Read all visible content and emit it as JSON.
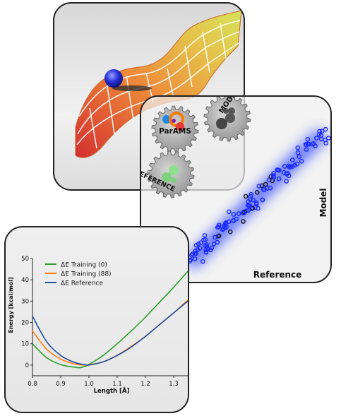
{
  "pes_card": {
    "content": "potential energy surface with a sphere on it"
  },
  "parity_card": {
    "logo": "ParAMS",
    "gear_model_label": "MODEL",
    "gear_reference_label": "REFERENCE",
    "x_axis_label": "Reference",
    "y_axis_label": "Model",
    "colors": {
      "points": "#1a2aff",
      "glow": "#3c52ff",
      "black_points": "#111111"
    }
  },
  "chart_data": {
    "type": "line",
    "xlabel": "Length [Å]",
    "ylabel": "Energy [kcal/mol]",
    "xlim": [
      0.8,
      1.35
    ],
    "ylim": [
      -5,
      50
    ],
    "xticks": [
      "0.8",
      "0.9",
      "1.0",
      "1.1",
      "1.2",
      "1.3"
    ],
    "yticks": [
      "0",
      "10",
      "20",
      "30",
      "40",
      "50"
    ],
    "legend_placement": "top-left",
    "series": [
      {
        "name": "ΔE Training (0)",
        "color": "#2ca02c",
        "x": [
          0.8,
          0.85,
          0.9,
          0.95,
          0.97,
          1.0,
          1.05,
          1.1,
          1.15,
          1.2,
          1.25,
          1.3,
          1.35
        ],
        "y": [
          10.0,
          3.5,
          0.2,
          -1.0,
          -1.2,
          0.3,
          4.5,
          10.0,
          16.0,
          22.5,
          29.5,
          36.5,
          44.0
        ]
      },
      {
        "name": "ΔE Training (88)",
        "color": "#ff7f0e",
        "x": [
          0.8,
          0.85,
          0.9,
          0.95,
          0.99,
          1.0,
          1.05,
          1.1,
          1.15,
          1.2,
          1.25,
          1.3,
          1.35
        ],
        "y": [
          16.0,
          7.5,
          2.8,
          0.5,
          0.0,
          0.1,
          1.5,
          4.6,
          8.8,
          13.5,
          19.0,
          24.5,
          30.5
        ]
      },
      {
        "name": "ΔE Reference",
        "color": "#1f4e9c",
        "x": [
          0.8,
          0.85,
          0.9,
          0.95,
          0.99,
          1.0,
          1.05,
          1.1,
          1.15,
          1.2,
          1.25,
          1.3,
          1.35
        ],
        "y": [
          23.0,
          11.0,
          4.5,
          1.2,
          0.1,
          0.0,
          1.5,
          4.5,
          8.5,
          13.5,
          19.0,
          24.5,
          30.0
        ]
      }
    ]
  }
}
